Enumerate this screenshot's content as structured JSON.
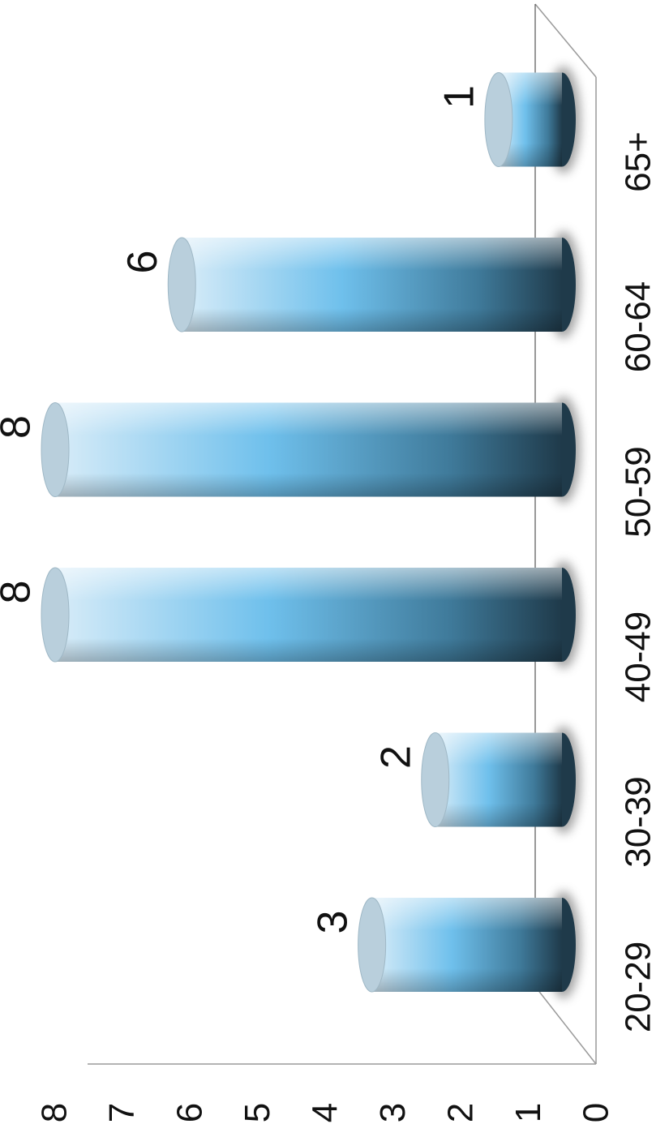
{
  "chart_data": {
    "type": "bar",
    "style": "3d-cylinder",
    "orientation": "rotated-90-clockwise",
    "categories": [
      "20-29",
      "30-39",
      "40-49",
      "50-59",
      "60-64",
      "65+"
    ],
    "values": [
      3,
      2,
      8,
      8,
      6,
      1
    ],
    "data_labels": [
      "3",
      "2",
      "8",
      "8",
      "6",
      "1"
    ],
    "ylim": [
      0,
      8
    ],
    "yticks": [
      "0",
      "1",
      "2",
      "3",
      "4",
      "5",
      "6",
      "7",
      "8"
    ],
    "grid": false,
    "legend": "none",
    "colors": {
      "bar_light": "#d8ecf8",
      "bar_mid": "#6fc0ec",
      "bar_dark": "#1f3a4a",
      "cap": "#b9cfdc",
      "shadow": "#5a5a5a",
      "axis": "#9a9a9a"
    }
  }
}
